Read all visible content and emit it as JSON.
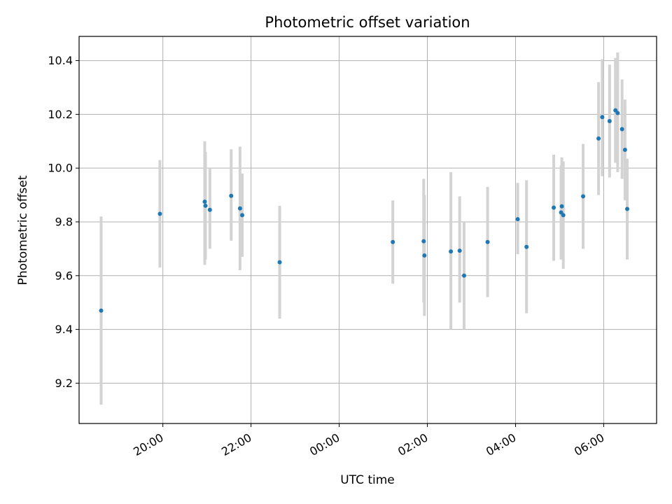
{
  "chart_data": {
    "type": "scatter",
    "title": "Photometric offset variation",
    "xlabel": "UTC time",
    "ylabel": "Photometric offset",
    "xlim": [
      "18:06",
      "07:12"
    ],
    "ylim": [
      9.05,
      10.49
    ],
    "x_ticks": [
      "20:00",
      "22:00",
      "00:00",
      "02:00",
      "04:00",
      "06:00"
    ],
    "y_ticks": [
      "9.2",
      "9.4",
      "9.6",
      "9.8",
      "10.0",
      "10.2",
      "10.4"
    ],
    "grid": true,
    "marker_color": "#1f77b4",
    "errorbar_color": "#d3d3d3",
    "points": [
      {
        "t": "18:36",
        "y": 9.47,
        "lo": 9.12,
        "hi": 9.82
      },
      {
        "t": "19:56",
        "y": 9.83,
        "lo": 9.63,
        "hi": 10.03
      },
      {
        "t": "20:57",
        "y": 9.875,
        "lo": 9.64,
        "hi": 10.1
      },
      {
        "t": "20:58",
        "y": 9.86,
        "lo": 9.66,
        "hi": 10.06
      },
      {
        "t": "21:04",
        "y": 9.845,
        "lo": 9.7,
        "hi": 10.0
      },
      {
        "t": "21:33",
        "y": 9.897,
        "lo": 9.73,
        "hi": 10.07
      },
      {
        "t": "21:45",
        "y": 9.85,
        "lo": 9.62,
        "hi": 10.08
      },
      {
        "t": "21:48",
        "y": 9.825,
        "lo": 9.67,
        "hi": 9.98
      },
      {
        "t": "22:39",
        "y": 9.65,
        "lo": 9.44,
        "hi": 9.86
      },
      {
        "t": "01:13",
        "y": 9.725,
        "lo": 9.57,
        "hi": 9.88
      },
      {
        "t": "01:55",
        "y": 9.728,
        "lo": 9.5,
        "hi": 9.96
      },
      {
        "t": "01:56",
        "y": 9.675,
        "lo": 9.45,
        "hi": 9.9
      },
      {
        "t": "02:32",
        "y": 9.69,
        "lo": 9.4,
        "hi": 9.985
      },
      {
        "t": "02:44",
        "y": 9.693,
        "lo": 9.5,
        "hi": 9.895
      },
      {
        "t": "02:50",
        "y": 9.6,
        "lo": 9.4,
        "hi": 9.8
      },
      {
        "t": "03:22",
        "y": 9.725,
        "lo": 9.52,
        "hi": 9.93
      },
      {
        "t": "04:03",
        "y": 9.81,
        "lo": 9.68,
        "hi": 9.945
      },
      {
        "t": "04:15",
        "y": 9.707,
        "lo": 9.46,
        "hi": 9.955
      },
      {
        "t": "04:52",
        "y": 9.853,
        "lo": 9.655,
        "hi": 10.05
      },
      {
        "t": "05:02",
        "y": 9.835,
        "lo": 9.66,
        "hi": 10.01
      },
      {
        "t": "05:03",
        "y": 9.858,
        "lo": 9.68,
        "hi": 10.04
      },
      {
        "t": "05:05",
        "y": 9.825,
        "lo": 9.625,
        "hi": 10.025
      },
      {
        "t": "05:32",
        "y": 9.895,
        "lo": 9.7,
        "hi": 10.09
      },
      {
        "t": "05:53",
        "y": 10.11,
        "lo": 9.9,
        "hi": 10.32
      },
      {
        "t": "05:58",
        "y": 10.19,
        "lo": 9.97,
        "hi": 10.405
      },
      {
        "t": "06:08",
        "y": 10.175,
        "lo": 9.965,
        "hi": 10.385
      },
      {
        "t": "06:16",
        "y": 10.215,
        "lo": 10.02,
        "hi": 10.41
      },
      {
        "t": "06:19",
        "y": 10.205,
        "lo": 9.985,
        "hi": 10.43
      },
      {
        "t": "06:25",
        "y": 10.145,
        "lo": 9.96,
        "hi": 10.33
      },
      {
        "t": "06:29",
        "y": 10.068,
        "lo": 9.88,
        "hi": 10.255
      },
      {
        "t": "06:32",
        "y": 9.848,
        "lo": 9.66,
        "hi": 10.035
      }
    ]
  }
}
